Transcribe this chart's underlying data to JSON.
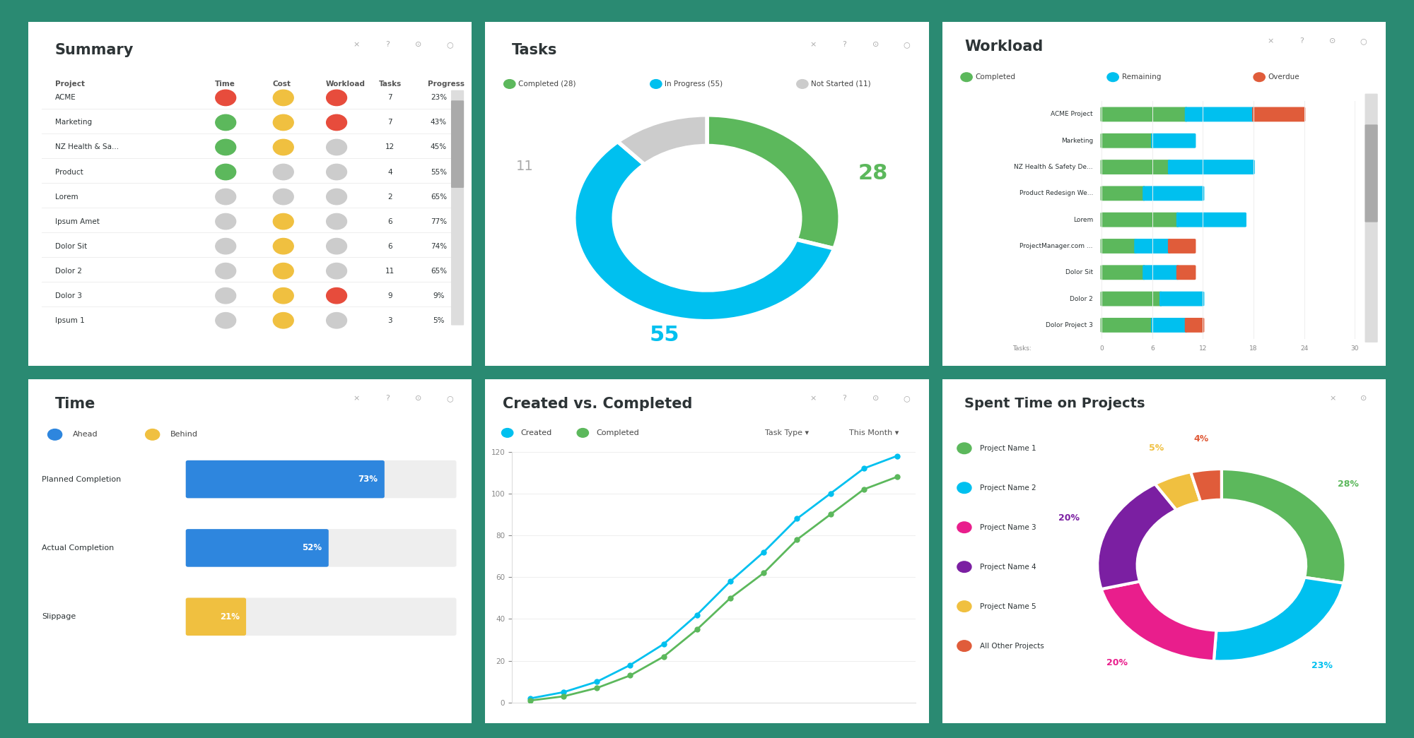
{
  "bg_color": "#2a8a72",
  "panel_bg": "#ffffff",
  "summary": {
    "title": "Summary",
    "headers": [
      "Project",
      "Time",
      "Cost",
      "Workload",
      "Tasks",
      "Progress"
    ],
    "projects": [
      "ACME",
      "Marketing",
      "NZ Health & Sa...",
      "Product",
      "Lorem",
      "Ipsum Amet",
      "Dolor Sit",
      "Dolor 2",
      "Dolor 3",
      "Ipsum 1"
    ],
    "time": [
      "red",
      "green",
      "green",
      "green",
      "gray",
      "gray",
      "gray",
      "gray",
      "gray",
      "gray"
    ],
    "cost": [
      "yellow",
      "yellow",
      "yellow",
      "gray",
      "gray",
      "yellow",
      "yellow",
      "yellow",
      "yellow",
      "yellow"
    ],
    "workload": [
      "red",
      "red",
      "gray",
      "gray",
      "gray",
      "gray",
      "gray",
      "gray",
      "red",
      "gray"
    ],
    "tasks": [
      7,
      7,
      12,
      4,
      2,
      6,
      6,
      11,
      9,
      3
    ],
    "progress": [
      "23%",
      "43%",
      "45%",
      "55%",
      "65%",
      "77%",
      "74%",
      "65%",
      "9%",
      "5%"
    ]
  },
  "tasks": {
    "title": "Tasks",
    "completed": 28,
    "in_progress": 55,
    "not_started": 11,
    "color_completed": "#5cb85c",
    "color_in_progress": "#00c0ef",
    "color_not_started": "#cccccc"
  },
  "workload": {
    "title": "Workload",
    "projects": [
      "ACME Project",
      "Marketing",
      "NZ Health & Safety De...",
      "Product Redesign We...",
      "Lorem",
      "ProjectManager.com ...",
      "Dolor Sit",
      "Dolor 2",
      "Dolor Project 3"
    ],
    "completed": [
      10,
      6,
      8,
      5,
      9,
      4,
      5,
      7,
      6
    ],
    "remaining": [
      8,
      5,
      10,
      7,
      8,
      4,
      4,
      5,
      4
    ],
    "overdue": [
      6,
      0,
      0,
      0,
      0,
      3,
      2,
      0,
      2
    ],
    "color_completed": "#5cb85c",
    "color_remaining": "#00c0ef",
    "color_overdue": "#e05c3a",
    "x_max": 30
  },
  "time": {
    "title": "Time",
    "legend_ahead": "#2e86de",
    "legend_behind": "#f0c040",
    "categories": [
      "Planned Completion",
      "Actual Completion",
      "Slippage"
    ],
    "values": [
      73,
      52,
      21
    ],
    "colors": [
      "#2e86de",
      "#2e86de",
      "#f0c040"
    ],
    "x_max": 100
  },
  "created_vs_completed": {
    "title": "Created vs. Completed",
    "created_label": "Created",
    "completed_label": "Completed",
    "x": [
      0,
      1,
      2,
      3,
      4,
      5,
      6,
      7,
      8,
      9,
      10,
      11
    ],
    "created": [
      2,
      5,
      10,
      18,
      28,
      42,
      58,
      72,
      88,
      100,
      112,
      118
    ],
    "completed": [
      1,
      3,
      7,
      13,
      22,
      35,
      50,
      62,
      78,
      90,
      102,
      108
    ],
    "color_created": "#00c0ef",
    "color_completed": "#5cb85c",
    "y_max": 120,
    "y_ticks": [
      0,
      20,
      40,
      60,
      80,
      100,
      120
    ]
  },
  "spent_time": {
    "title": "Spent Time on Projects",
    "labels": [
      "Project Name 1",
      "Project Name 2",
      "Project Name 3",
      "Project Name 4",
      "Project Name 5",
      "All Other Projects"
    ],
    "values": [
      28,
      23,
      20,
      20,
      5,
      4
    ],
    "colors": [
      "#5cb85c",
      "#00c0ef",
      "#e91e8c",
      "#7b1fa2",
      "#f0c040",
      "#e05c3a"
    ],
    "pct_labels": [
      "28%",
      "23%",
      "20%",
      "20%",
      "5%",
      "4%"
    ]
  }
}
